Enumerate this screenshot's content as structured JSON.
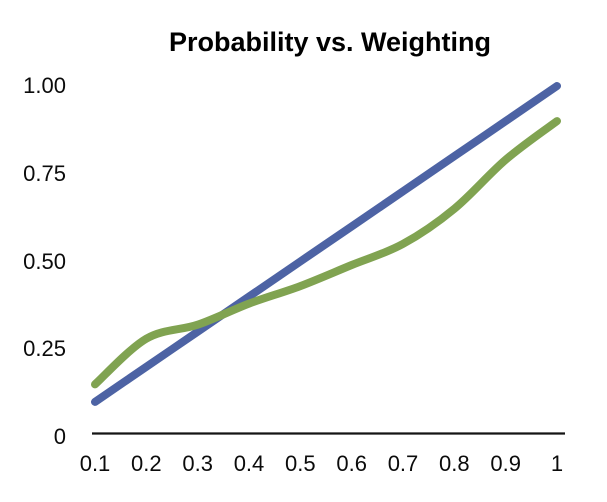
{
  "title": "Probability vs. Weighting",
  "colors": {
    "probability_line": "#4d63a4",
    "weighting_line": "#80a351",
    "axis": "#141414",
    "text": "#0b0b0b",
    "background": "#ffffff"
  },
  "y_axis": {
    "ticks": [
      {
        "label": "1.00",
        "value": 1
      },
      {
        "label": "0.75",
        "value": 0.75
      },
      {
        "label": "0.50",
        "value": 0.5
      },
      {
        "label": "0.25",
        "value": 0.25
      },
      {
        "label": "0",
        "value": 0
      }
    ]
  },
  "x_axis": {
    "ticks": [
      {
        "label": "0.1",
        "value": 0.1
      },
      {
        "label": "0.2",
        "value": 0.2
      },
      {
        "label": "0.3",
        "value": 0.3
      },
      {
        "label": "0.4",
        "value": 0.4
      },
      {
        "label": "0.5",
        "value": 0.5
      },
      {
        "label": "0.6",
        "value": 0.6
      },
      {
        "label": "0.7",
        "value": 0.7
      },
      {
        "label": "0.8",
        "value": 0.8
      },
      {
        "label": "0.9",
        "value": 0.9
      },
      {
        "label": "1",
        "value": 1
      }
    ]
  },
  "chart_data": {
    "type": "line",
    "title": "Probability vs. Weighting",
    "x": [
      0.1,
      0.2,
      0.3,
      0.4,
      0.5,
      0.6,
      0.7,
      0.8,
      0.9,
      1.0
    ],
    "series": [
      {
        "name": "Probability",
        "color": "#4d63a4",
        "values": [
          0.1,
          0.2,
          0.3,
          0.4,
          0.5,
          0.6,
          0.7,
          0.8,
          0.9,
          1.0
        ]
      },
      {
        "name": "Weighting",
        "color": "#80a351",
        "values": [
          0.15,
          0.28,
          0.32,
          0.38,
          0.43,
          0.49,
          0.55,
          0.65,
          0.79,
          0.9
        ]
      }
    ],
    "xlabel": "",
    "ylabel": "",
    "xlim": [
      0.1,
      1.0
    ],
    "ylim": [
      0,
      1.0
    ],
    "grid": false,
    "legend": "none"
  }
}
